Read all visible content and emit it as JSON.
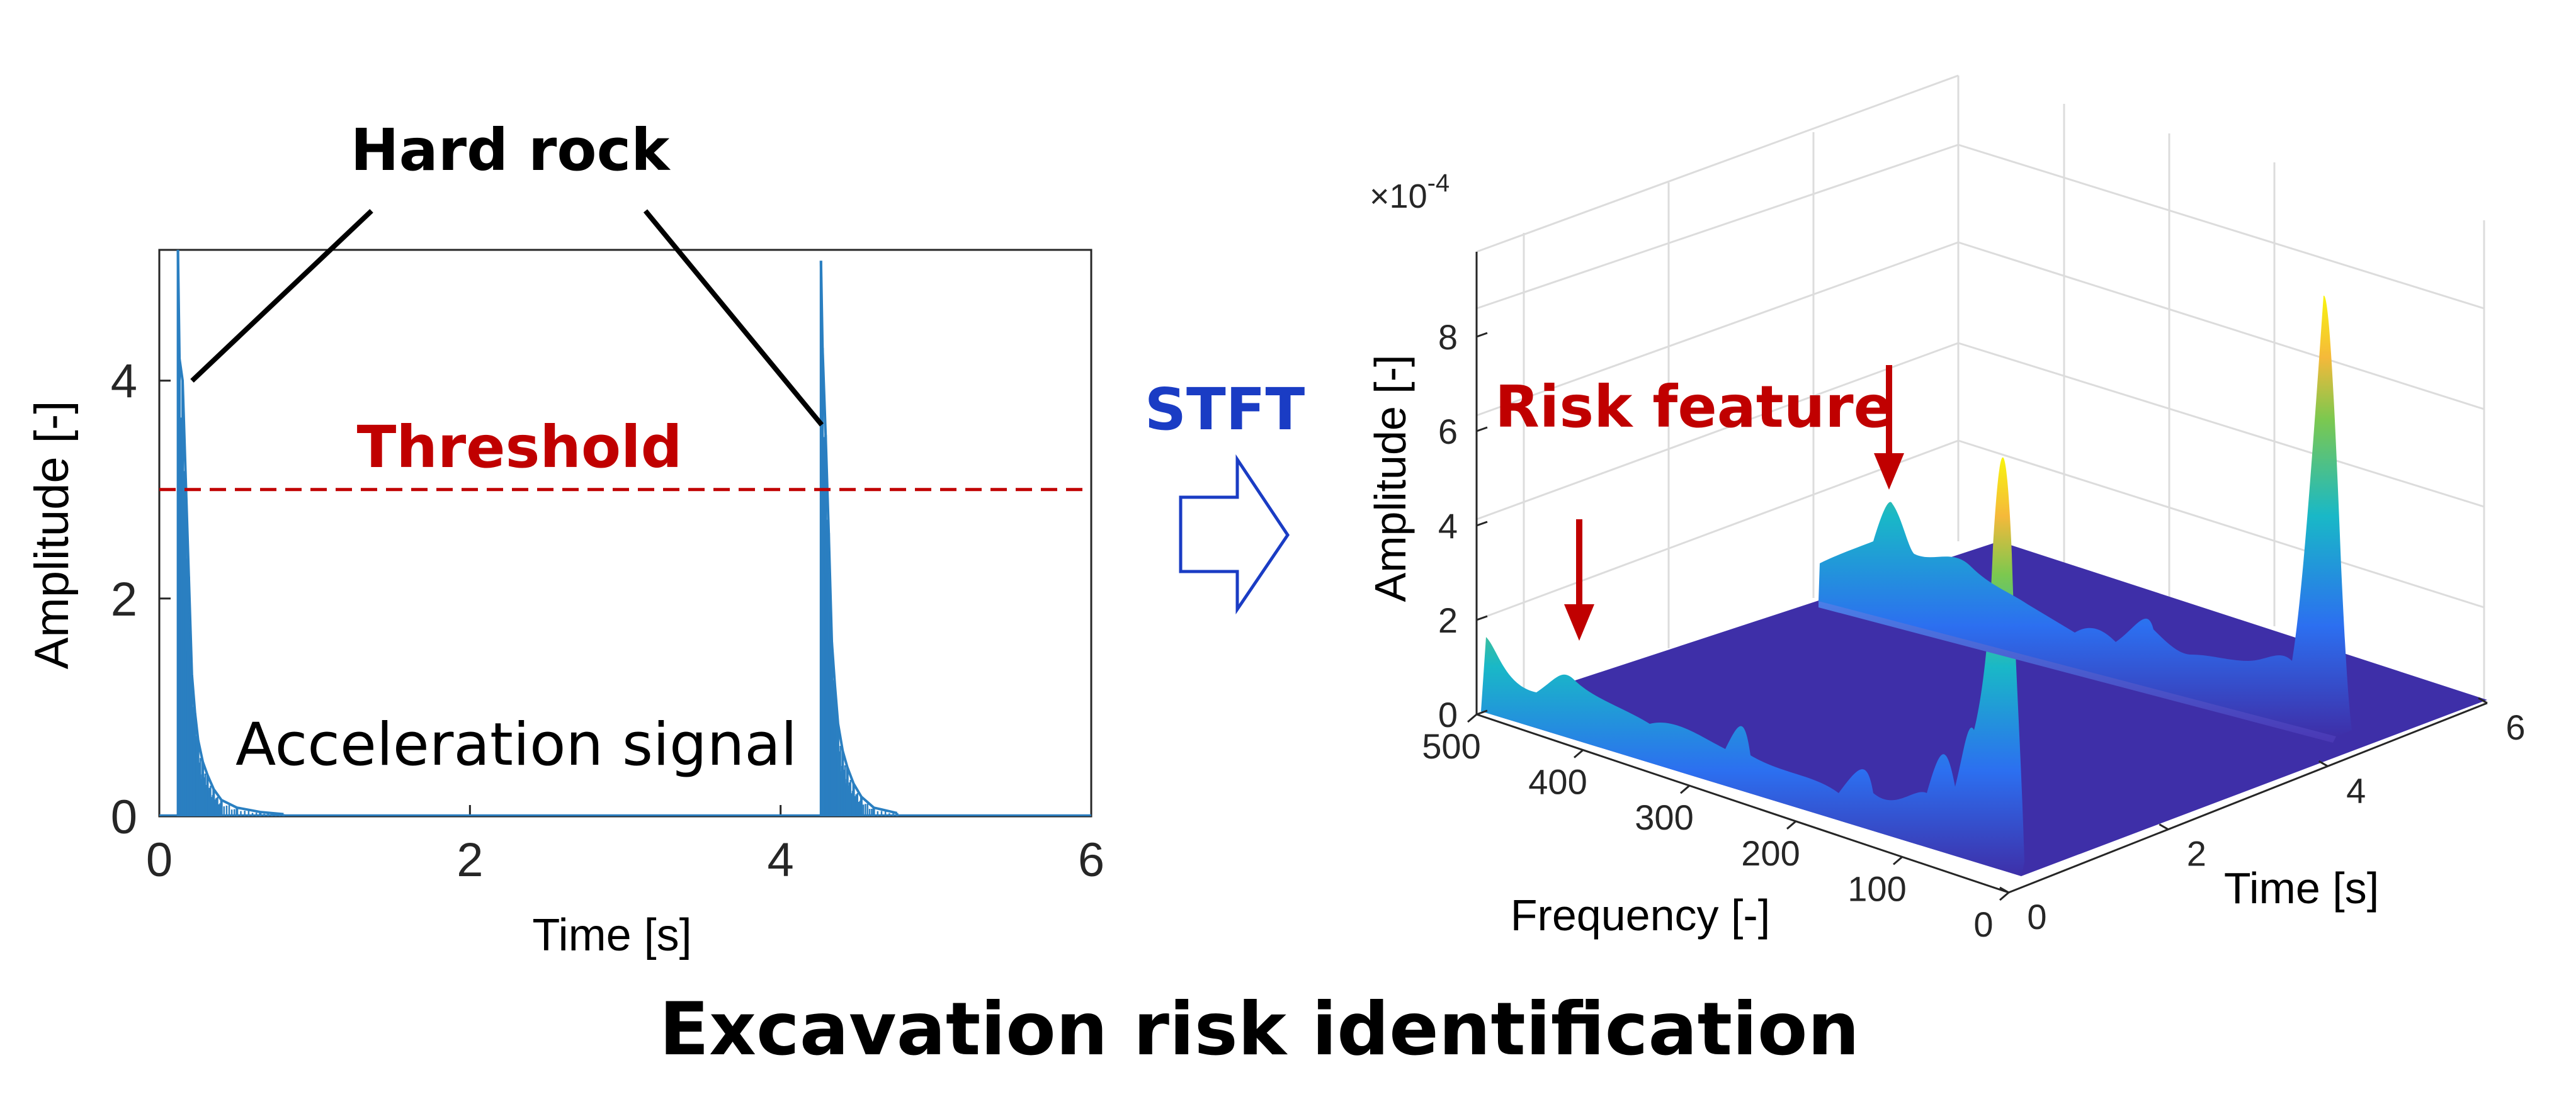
{
  "figure": {
    "caption": "Excavation risk identification",
    "transform_label": "STFT"
  },
  "chart_data": [
    {
      "type": "line",
      "xlabel": "Time [s]",
      "ylabel": "Amplitude [-]",
      "xlim": [
        0,
        6
      ],
      "ylim": [
        0,
        5.2
      ],
      "xticks": [
        "0",
        "2",
        "4",
        "6"
      ],
      "yticks": [
        "0",
        "2",
        "4"
      ],
      "threshold": {
        "label": "Threshold",
        "value": 3.0
      },
      "annotations": {
        "hard_rock": "Hard rock",
        "signal": "Acceleration signal"
      },
      "series": [
        {
          "x": [
            0.12,
            0.13,
            0.15,
            0.17,
            0.19,
            0.21,
            0.23,
            0.25,
            0.28,
            0.31,
            0.35,
            0.4,
            0.5,
            0.65,
            0.8,
            4.26,
            4.27,
            4.29,
            4.31,
            4.33,
            4.35,
            4.37,
            4.4,
            4.43,
            4.47,
            4.52,
            4.6,
            4.75
          ],
          "y": [
            5.3,
            4.2,
            4.0,
            3.1,
            2.2,
            1.3,
            0.95,
            0.7,
            0.5,
            0.38,
            0.25,
            0.15,
            0.08,
            0.04,
            0.02,
            5.1,
            4.3,
            3.5,
            2.6,
            1.6,
            1.2,
            0.85,
            0.6,
            0.45,
            0.3,
            0.18,
            0.08,
            0.03
          ]
        }
      ],
      "color": "#2a7fc1",
      "threshold_color": "#c00000"
    },
    {
      "type": "surface",
      "xlabel": "Frequency [-]",
      "ylabel": "Time [s]",
      "zlabel": "Amplitude [-]",
      "zscale_label": "×10",
      "zscale_exponent": "-4",
      "xticks": [
        "500",
        "400",
        "300",
        "200",
        "100",
        "0"
      ],
      "yticks": [
        "0",
        "2",
        "4",
        "6"
      ],
      "zticks": [
        "0",
        "2",
        "4",
        "6",
        "8"
      ],
      "zlim": [
        0,
        9
      ],
      "annotation": "Risk feature",
      "ridges": [
        {
          "time": 0.15,
          "frequency": [
            500,
            470,
            440,
            410,
            380,
            350,
            320,
            290,
            260,
            230,
            200,
            170,
            140,
            110,
            80,
            60,
            40
          ],
          "amplitude": [
            1.5,
            0.9,
            0.9,
            0.7,
            0.6,
            0.5,
            0.4,
            0.5,
            0.6,
            0.8,
            0.6,
            0.8,
            1.0,
            1.4,
            2.0,
            3.0,
            7.5
          ]
        },
        {
          "time": 4.3,
          "frequency": [
            500,
            470,
            440,
            410,
            380,
            350,
            320,
            290,
            260,
            230,
            200,
            170,
            140,
            110,
            80,
            60,
            40
          ],
          "amplitude": [
            1.5,
            1.8,
            2.8,
            3.8,
            2.4,
            2.1,
            1.8,
            1.5,
            1.3,
            1.1,
            1.0,
            1.2,
            1.5,
            1.2,
            1.6,
            3.0,
            8.4
          ]
        }
      ]
    }
  ]
}
